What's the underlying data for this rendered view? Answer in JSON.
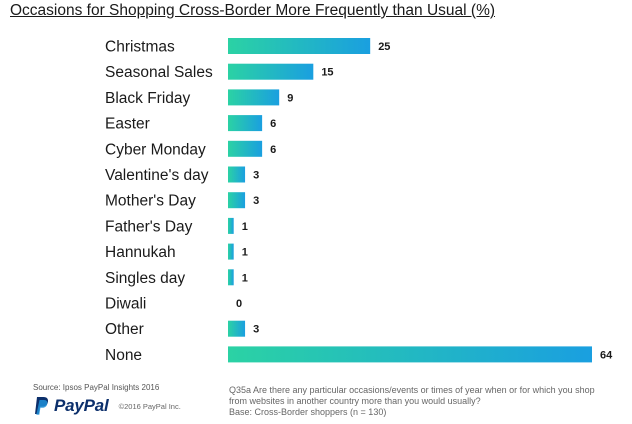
{
  "chart_data": {
    "type": "bar",
    "orientation": "horizontal",
    "title": "Occasions for Shopping Cross-Border More Frequently than Usual (%)",
    "categories": [
      "Christmas",
      "Seasonal Sales",
      "Black Friday",
      "Easter",
      "Cyber Monday",
      "Valentine's day",
      "Mother's Day",
      "Father's Day",
      "Hannukah",
      "Singles day",
      "Diwali",
      "Other",
      "None"
    ],
    "values": [
      25,
      15,
      9,
      6,
      6,
      3,
      3,
      1,
      1,
      1,
      0,
      3,
      64
    ],
    "xlim": [
      0,
      64
    ],
    "grid": false,
    "colors": {
      "gradient_start": "#2bd2a4",
      "gradient_end": "#1a9fe0"
    }
  },
  "source": "Source: Ipsos PayPal Insights 2016",
  "brand": "PayPal",
  "copyright": "©2016 PayPal Inc.",
  "footnote": {
    "line1": "Q35a  Are there any particular occasions/events or times of year when or for which you shop",
    "line2": "from websites in another country more  than you would usually?",
    "line3": "Base: Cross-Border shoppers (n = 130)"
  }
}
